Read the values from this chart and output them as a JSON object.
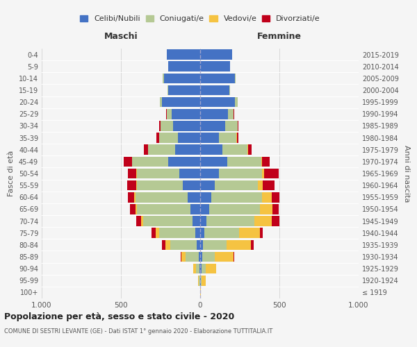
{
  "age_groups": [
    "100+",
    "95-99",
    "90-94",
    "85-89",
    "80-84",
    "75-79",
    "70-74",
    "65-69",
    "60-64",
    "55-59",
    "50-54",
    "45-49",
    "40-44",
    "35-39",
    "30-34",
    "25-29",
    "20-24",
    "15-19",
    "10-14",
    "5-9",
    "0-4"
  ],
  "birth_years": [
    "≤ 1919",
    "1920-1924",
    "1925-1929",
    "1930-1934",
    "1935-1939",
    "1940-1944",
    "1945-1949",
    "1950-1954",
    "1955-1959",
    "1960-1964",
    "1965-1969",
    "1970-1974",
    "1975-1979",
    "1980-1984",
    "1985-1989",
    "1990-1994",
    "1995-1999",
    "2000-2004",
    "2005-2009",
    "2010-2014",
    "2015-2019"
  ],
  "males": {
    "celibi": [
      0,
      2,
      5,
      10,
      20,
      30,
      50,
      60,
      80,
      110,
      130,
      200,
      160,
      140,
      170,
      180,
      240,
      200,
      230,
      200,
      210
    ],
    "coniugati": [
      0,
      5,
      20,
      80,
      170,
      230,
      310,
      340,
      330,
      290,
      270,
      230,
      170,
      120,
      80,
      30,
      15,
      5,
      5,
      0,
      0
    ],
    "vedovi": [
      0,
      5,
      20,
      30,
      30,
      20,
      15,
      10,
      5,
      5,
      3,
      2,
      0,
      0,
      0,
      0,
      0,
      0,
      0,
      0,
      0
    ],
    "divorziati": [
      0,
      0,
      0,
      5,
      20,
      25,
      30,
      35,
      40,
      55,
      55,
      50,
      25,
      15,
      10,
      5,
      0,
      0,
      0,
      0,
      0
    ]
  },
  "females": {
    "nubili": [
      0,
      3,
      8,
      12,
      18,
      25,
      40,
      55,
      70,
      90,
      120,
      170,
      140,
      120,
      160,
      175,
      220,
      185,
      220,
      190,
      200
    ],
    "coniugate": [
      0,
      5,
      25,
      80,
      150,
      220,
      300,
      320,
      320,
      275,
      270,
      215,
      160,
      110,
      75,
      35,
      15,
      5,
      5,
      0,
      0
    ],
    "vedove": [
      3,
      25,
      70,
      120,
      150,
      130,
      110,
      80,
      60,
      30,
      15,
      5,
      3,
      2,
      0,
      0,
      0,
      0,
      0,
      0,
      0
    ],
    "divorziate": [
      0,
      0,
      0,
      5,
      20,
      20,
      50,
      40,
      50,
      75,
      90,
      50,
      20,
      10,
      5,
      5,
      3,
      0,
      0,
      0,
      0
    ]
  },
  "colors": {
    "celibi_nubili": "#4472C4",
    "coniugati": "#B5C994",
    "vedovi": "#F5C342",
    "divorziati": "#C0001A"
  },
  "title": "Popolazione per età, sesso e stato civile - 2020",
  "subtitle": "COMUNE DI SESTRI LEVANTE (GE) - Dati ISTAT 1° gennaio 2020 - Elaborazione TUTTITALIA.IT",
  "xlim": 1000,
  "xlabel_left": "Maschi",
  "xlabel_right": "Femmine",
  "ylabel_left": "Fasce di età",
  "ylabel_right": "Anni di nascita",
  "background_color": "#f5f5f5",
  "bar_height": 0.85
}
